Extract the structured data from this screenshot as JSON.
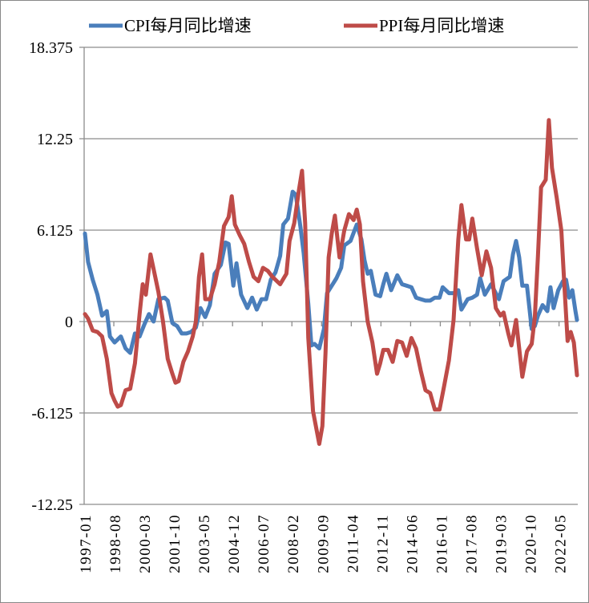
{
  "chart_data": {
    "type": "line",
    "title": "",
    "xlabel": "",
    "ylabel": "",
    "x_start": "1997-01",
    "x_end": "2023-04",
    "x_tick_labels": [
      "1997-01",
      "1998-08",
      "2000-03",
      "2001-10",
      "2003-05",
      "2004-12",
      "2006-07",
      "2008-02",
      "2009-09",
      "2011-04",
      "2012-11",
      "2014-06",
      "2016-01",
      "2017-08",
      "2019-03",
      "2020-10",
      "2022-05"
    ],
    "y_tick_labels": [
      "18.375",
      "12.25",
      "6.125",
      "0",
      "-6.125",
      "-12.25"
    ],
    "ylim": [
      -12.25,
      18.375
    ],
    "grid": "horizontal",
    "legend_position": "top",
    "series": [
      {
        "name": "CPI每月同比增速",
        "color": "#4a7ebb",
        "points": [
          [
            "1997-01",
            5.9
          ],
          [
            "1997-03",
            4.0
          ],
          [
            "1997-06",
            2.8
          ],
          [
            "1997-09",
            1.8
          ],
          [
            "1997-12",
            0.4
          ],
          [
            "1998-03",
            0.7
          ],
          [
            "1998-05",
            -1.0
          ],
          [
            "1998-08",
            -1.4
          ],
          [
            "1998-12",
            -1.0
          ],
          [
            "1999-03",
            -1.8
          ],
          [
            "1999-06",
            -2.1
          ],
          [
            "1999-09",
            -0.8
          ],
          [
            "1999-12",
            -1.0
          ],
          [
            "2000-03",
            -0.2
          ],
          [
            "2000-06",
            0.5
          ],
          [
            "2000-09",
            0.0
          ],
          [
            "2000-12",
            1.5
          ],
          [
            "2001-04",
            1.6
          ],
          [
            "2001-06",
            1.4
          ],
          [
            "2001-09",
            -0.1
          ],
          [
            "2001-12",
            -0.3
          ],
          [
            "2002-03",
            -0.8
          ],
          [
            "2002-06",
            -0.8
          ],
          [
            "2002-09",
            -0.7
          ],
          [
            "2002-12",
            -0.4
          ],
          [
            "2003-03",
            0.9
          ],
          [
            "2003-06",
            0.3
          ],
          [
            "2003-09",
            1.1
          ],
          [
            "2003-12",
            3.2
          ],
          [
            "2004-04",
            3.8
          ],
          [
            "2004-07",
            5.3
          ],
          [
            "2004-09",
            5.2
          ],
          [
            "2004-12",
            2.4
          ],
          [
            "2005-02",
            3.9
          ],
          [
            "2005-05",
            1.8
          ],
          [
            "2005-09",
            0.9
          ],
          [
            "2005-12",
            1.6
          ],
          [
            "2006-03",
            0.8
          ],
          [
            "2006-06",
            1.5
          ],
          [
            "2006-09",
            1.5
          ],
          [
            "2006-12",
            2.8
          ],
          [
            "2007-03",
            3.3
          ],
          [
            "2007-06",
            4.4
          ],
          [
            "2007-08",
            6.5
          ],
          [
            "2007-11",
            6.9
          ],
          [
            "2008-02",
            8.7
          ],
          [
            "2008-04",
            8.5
          ],
          [
            "2008-07",
            6.3
          ],
          [
            "2008-09",
            4.6
          ],
          [
            "2008-12",
            1.2
          ],
          [
            "2009-02",
            -1.6
          ],
          [
            "2009-04",
            -1.5
          ],
          [
            "2009-07",
            -1.8
          ],
          [
            "2009-10",
            -0.5
          ],
          [
            "2009-12",
            1.9
          ],
          [
            "2010-03",
            2.4
          ],
          [
            "2010-06",
            2.9
          ],
          [
            "2010-09",
            3.6
          ],
          [
            "2010-11",
            5.1
          ],
          [
            "2011-03",
            5.4
          ],
          [
            "2011-07",
            6.5
          ],
          [
            "2011-10",
            5.5
          ],
          [
            "2011-12",
            4.1
          ],
          [
            "2012-02",
            3.2
          ],
          [
            "2012-04",
            3.4
          ],
          [
            "2012-07",
            1.8
          ],
          [
            "2012-10",
            1.7
          ],
          [
            "2012-12",
            2.5
          ],
          [
            "2013-02",
            3.2
          ],
          [
            "2013-05",
            2.1
          ],
          [
            "2013-09",
            3.1
          ],
          [
            "2013-12",
            2.5
          ],
          [
            "2014-03",
            2.4
          ],
          [
            "2014-06",
            2.3
          ],
          [
            "2014-09",
            1.6
          ],
          [
            "2014-12",
            1.5
          ],
          [
            "2015-03",
            1.4
          ],
          [
            "2015-06",
            1.4
          ],
          [
            "2015-09",
            1.6
          ],
          [
            "2015-12",
            1.6
          ],
          [
            "2016-02",
            2.3
          ],
          [
            "2016-06",
            1.9
          ],
          [
            "2016-09",
            1.9
          ],
          [
            "2016-12",
            2.1
          ],
          [
            "2017-02",
            0.8
          ],
          [
            "2017-06",
            1.5
          ],
          [
            "2017-09",
            1.6
          ],
          [
            "2017-12",
            1.8
          ],
          [
            "2018-02",
            2.9
          ],
          [
            "2018-05",
            1.8
          ],
          [
            "2018-09",
            2.5
          ],
          [
            "2018-12",
            1.9
          ],
          [
            "2019-02",
            1.5
          ],
          [
            "2019-05",
            2.7
          ],
          [
            "2019-09",
            3.0
          ],
          [
            "2019-11",
            4.5
          ],
          [
            "2020-01",
            5.4
          ],
          [
            "2020-03",
            4.3
          ],
          [
            "2020-05",
            2.4
          ],
          [
            "2020-08",
            2.4
          ],
          [
            "2020-11",
            -0.5
          ],
          [
            "2021-01",
            -0.3
          ],
          [
            "2021-03",
            0.4
          ],
          [
            "2021-06",
            1.1
          ],
          [
            "2021-09",
            0.7
          ],
          [
            "2021-11",
            2.3
          ],
          [
            "2022-01",
            0.9
          ],
          [
            "2022-04",
            2.1
          ],
          [
            "2022-07",
            2.7
          ],
          [
            "2022-09",
            2.8
          ],
          [
            "2022-11",
            1.6
          ],
          [
            "2023-01",
            2.1
          ],
          [
            "2023-03",
            0.7
          ],
          [
            "2023-04",
            0.1
          ]
        ]
      },
      {
        "name": "PPI每月同比增速",
        "color": "#be4b48",
        "points": [
          [
            "1997-01",
            0.5
          ],
          [
            "1997-03",
            0.2
          ],
          [
            "1997-06",
            -0.6
          ],
          [
            "1997-09",
            -0.7
          ],
          [
            "1997-12",
            -1.0
          ],
          [
            "1998-03",
            -2.5
          ],
          [
            "1998-06",
            -4.8
          ],
          [
            "1998-08",
            -5.3
          ],
          [
            "1998-10",
            -5.7
          ],
          [
            "1998-12",
            -5.6
          ],
          [
            "1999-03",
            -4.6
          ],
          [
            "1999-06",
            -4.5
          ],
          [
            "1999-09",
            -2.8
          ],
          [
            "1999-12",
            0.5
          ],
          [
            "2000-02",
            2.5
          ],
          [
            "2000-04",
            1.8
          ],
          [
            "2000-07",
            4.5
          ],
          [
            "2000-10",
            3.0
          ],
          [
            "2000-12",
            2.0
          ],
          [
            "2001-03",
            0.0
          ],
          [
            "2001-06",
            -2.5
          ],
          [
            "2001-09",
            -3.5
          ],
          [
            "2001-11",
            -4.1
          ],
          [
            "2002-01",
            -4.0
          ],
          [
            "2002-04",
            -2.7
          ],
          [
            "2002-07",
            -2.0
          ],
          [
            "2002-10",
            -1.0
          ],
          [
            "2002-12",
            0.0
          ],
          [
            "2003-02",
            3.0
          ],
          [
            "2003-04",
            4.5
          ],
          [
            "2003-06",
            1.5
          ],
          [
            "2003-09",
            1.5
          ],
          [
            "2003-12",
            2.5
          ],
          [
            "2004-03",
            4.0
          ],
          [
            "2004-06",
            6.4
          ],
          [
            "2004-09",
            7.0
          ],
          [
            "2004-11",
            8.4
          ],
          [
            "2005-01",
            6.5
          ],
          [
            "2005-04",
            5.8
          ],
          [
            "2005-07",
            5.2
          ],
          [
            "2005-10",
            4.0
          ],
          [
            "2006-01",
            3.0
          ],
          [
            "2006-04",
            2.7
          ],
          [
            "2006-07",
            3.6
          ],
          [
            "2006-10",
            3.4
          ],
          [
            "2007-01",
            3.0
          ],
          [
            "2007-06",
            2.5
          ],
          [
            "2007-10",
            3.2
          ],
          [
            "2007-12",
            5.4
          ],
          [
            "2008-03",
            6.6
          ],
          [
            "2008-06",
            8.8
          ],
          [
            "2008-08",
            10.1
          ],
          [
            "2008-10",
            6.6
          ],
          [
            "2008-12",
            -1.1
          ],
          [
            "2009-03",
            -6.0
          ],
          [
            "2009-07",
            -8.2
          ],
          [
            "2009-09",
            -7.0
          ],
          [
            "2009-11",
            -2.1
          ],
          [
            "2010-01",
            4.3
          ],
          [
            "2010-03",
            5.9
          ],
          [
            "2010-05",
            7.1
          ],
          [
            "2010-08",
            4.3
          ],
          [
            "2010-11",
            6.1
          ],
          [
            "2011-02",
            7.2
          ],
          [
            "2011-05",
            6.8
          ],
          [
            "2011-07",
            7.5
          ],
          [
            "2011-09",
            6.5
          ],
          [
            "2011-11",
            2.7
          ],
          [
            "2012-02",
            0.0
          ],
          [
            "2012-05",
            -1.4
          ],
          [
            "2012-08",
            -3.5
          ],
          [
            "2012-10",
            -2.8
          ],
          [
            "2012-12",
            -1.9
          ],
          [
            "2013-03",
            -1.9
          ],
          [
            "2013-06",
            -2.7
          ],
          [
            "2013-09",
            -1.3
          ],
          [
            "2013-12",
            -1.4
          ],
          [
            "2014-03",
            -2.3
          ],
          [
            "2014-06",
            -1.1
          ],
          [
            "2014-09",
            -1.8
          ],
          [
            "2014-12",
            -3.3
          ],
          [
            "2015-03",
            -4.6
          ],
          [
            "2015-06",
            -4.8
          ],
          [
            "2015-09",
            -5.9
          ],
          [
            "2015-12",
            -5.9
          ],
          [
            "2016-03",
            -4.3
          ],
          [
            "2016-06",
            -2.6
          ],
          [
            "2016-09",
            0.1
          ],
          [
            "2016-12",
            5.5
          ],
          [
            "2017-02",
            7.8
          ],
          [
            "2017-05",
            5.5
          ],
          [
            "2017-07",
            5.5
          ],
          [
            "2017-09",
            6.9
          ],
          [
            "2017-12",
            4.9
          ],
          [
            "2018-03",
            3.1
          ],
          [
            "2018-06",
            4.7
          ],
          [
            "2018-09",
            3.6
          ],
          [
            "2018-12",
            0.9
          ],
          [
            "2019-03",
            0.4
          ],
          [
            "2019-05",
            0.6
          ],
          [
            "2019-08",
            -0.8
          ],
          [
            "2019-10",
            -1.6
          ],
          [
            "2020-01",
            0.1
          ],
          [
            "2020-05",
            -3.7
          ],
          [
            "2020-08",
            -2.0
          ],
          [
            "2020-11",
            -1.5
          ],
          [
            "2021-01",
            0.3
          ],
          [
            "2021-03",
            4.4
          ],
          [
            "2021-05",
            9.0
          ],
          [
            "2021-08",
            9.5
          ],
          [
            "2021-10",
            13.5
          ],
          [
            "2021-12",
            10.3
          ],
          [
            "2022-03",
            8.3
          ],
          [
            "2022-06",
            6.1
          ],
          [
            "2022-08",
            2.3
          ],
          [
            "2022-10",
            -1.3
          ],
          [
            "2022-12",
            -0.7
          ],
          [
            "2023-02",
            -1.4
          ],
          [
            "2023-04",
            -3.6
          ]
        ]
      }
    ]
  }
}
